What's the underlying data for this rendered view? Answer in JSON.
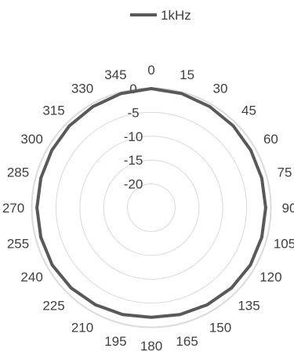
{
  "chart_data": {
    "type": "polar-line",
    "title": "",
    "legend": {
      "position": "top",
      "entries": [
        "1kHz"
      ]
    },
    "series": [
      {
        "name": "1kHz",
        "color": "#595959",
        "angles": [
          0,
          15,
          30,
          45,
          60,
          75,
          90,
          105,
          120,
          135,
          150,
          165,
          180,
          195,
          210,
          225,
          240,
          255,
          270,
          285,
          300,
          315,
          330,
          345
        ],
        "values": [
          0,
          -0.2,
          -0.5,
          -0.7,
          -0.9,
          -1.0,
          -1.0,
          -1.0,
          -1.0,
          -1.2,
          -1.5,
          -1.8,
          -2.0,
          -1.8,
          -1.5,
          -1.2,
          -1.0,
          -1.0,
          -1.0,
          -1.0,
          -0.9,
          -0.7,
          -0.5,
          -0.2
        ]
      }
    ],
    "angular_axis": {
      "tick_labels": [
        "0",
        "15",
        "30",
        "45",
        "60",
        "75",
        "90",
        "105",
        "120",
        "135",
        "150",
        "165",
        "180",
        "195",
        "210",
        "225",
        "240",
        "255",
        "270",
        "285",
        "300",
        "315",
        "330",
        "345"
      ],
      "direction": "clockwise",
      "zero": "top"
    },
    "radial_axis": {
      "range": [
        -25,
        0
      ],
      "tick_values": [
        0,
        -5,
        -10,
        -15,
        -20
      ],
      "tick_labels": [
        "0",
        "-5",
        "-10",
        "-15",
        "-20"
      ]
    },
    "grid": true
  }
}
